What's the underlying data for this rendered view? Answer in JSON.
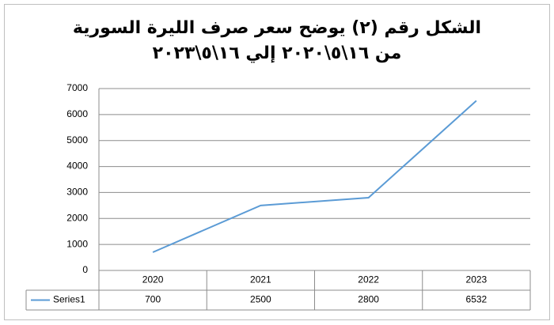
{
  "chart_data": {
    "type": "line",
    "title": "الشكل رقم (٢) يوضح سعر صرف الليرة السورية من ١٦\\٥\\٢٠٢٠ إلي ١٦\\٥\\٢٠٢٣",
    "categories": [
      "2020",
      "2021",
      "2022",
      "2023"
    ],
    "series": [
      {
        "name": "Series1",
        "color": "#5b9bd5",
        "values": [
          700,
          2500,
          2800,
          6532
        ]
      }
    ],
    "ylim": [
      0,
      7000
    ],
    "yticks": [
      0,
      1000,
      2000,
      3000,
      4000,
      5000,
      6000,
      7000
    ],
    "grid": true,
    "data_table": true
  }
}
